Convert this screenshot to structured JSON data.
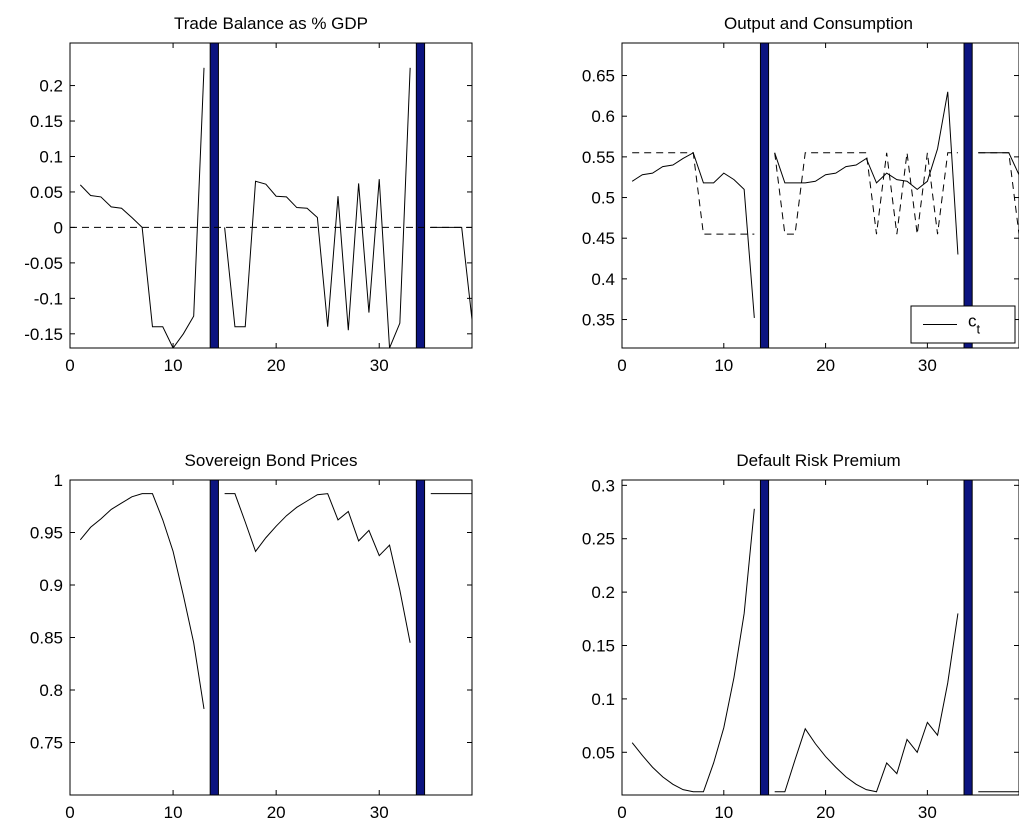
{
  "figure": {
    "background": "#ffffff",
    "shade_color": "#0c1480",
    "line_color": "#000000"
  },
  "chart_data": [
    {
      "type": "line",
      "title": "Trade Balance as % GDP",
      "xlim": [
        0,
        39
      ],
      "ylim": [
        -0.17,
        0.26
      ],
      "xticks": [
        0,
        10,
        20,
        30
      ],
      "yticks": [
        -0.15,
        -0.1,
        -0.05,
        0,
        0.05,
        0.1,
        0.15,
        0.2
      ],
      "ytick_labels": [
        "-0.15",
        "-0.1",
        "-0.05",
        "0",
        "0.05",
        "0.1",
        "0.15",
        "0.2"
      ],
      "shade_x": [
        [
          13.6,
          14.4
        ],
        [
          33.6,
          34.4
        ]
      ],
      "grid": false,
      "series": [
        {
          "style": "solid",
          "x": [
            1,
            2,
            3,
            4,
            5,
            6,
            7,
            8,
            9,
            10,
            11,
            12,
            13,
            14,
            15,
            16,
            17,
            18,
            19,
            20,
            21,
            22,
            23,
            24,
            25,
            26,
            27,
            28,
            29,
            30,
            31,
            32,
            33,
            34,
            35,
            36,
            37,
            38,
            39
          ],
          "y": [
            0.06,
            0.045,
            0.043,
            0.029,
            0.027,
            0.014,
            0.0,
            -0.14,
            -0.14,
            -0.17,
            -0.15,
            -0.125,
            0.225,
            null,
            0.0,
            -0.14,
            -0.14,
            0.065,
            0.061,
            0.044,
            0.043,
            0.028,
            0.027,
            0.014,
            -0.14,
            0.044,
            -0.145,
            0.062,
            -0.12,
            0.068,
            -0.17,
            -0.135,
            0.225,
            null,
            0.0,
            0.0,
            0.0,
            0.0,
            -0.13
          ]
        },
        {
          "style": "dashed",
          "x": [
            0,
            39
          ],
          "y": [
            0,
            0
          ]
        }
      ]
    },
    {
      "type": "line",
      "title": "Output and Consumption",
      "xlim": [
        0,
        39
      ],
      "ylim": [
        0.315,
        0.69
      ],
      "xticks": [
        0,
        10,
        20,
        30
      ],
      "yticks": [
        0.35,
        0.4,
        0.45,
        0.5,
        0.55,
        0.6,
        0.65
      ],
      "ytick_labels": [
        "0.35",
        "0.4",
        "0.45",
        "0.5",
        "0.55",
        "0.6",
        "0.65"
      ],
      "shade_x": [
        [
          13.6,
          14.4
        ],
        [
          33.6,
          34.4
        ]
      ],
      "grid": false,
      "legend": {
        "position": "bottom-right",
        "entries": [
          {
            "label": "c",
            "subscript": "t",
            "style": "solid"
          }
        ]
      },
      "series": [
        {
          "style": "solid",
          "x": [
            1,
            2,
            3,
            4,
            5,
            6,
            7,
            8,
            9,
            10,
            11,
            12,
            13,
            14,
            15,
            16,
            17,
            18,
            19,
            20,
            21,
            22,
            23,
            24,
            25,
            26,
            27,
            28,
            29,
            30,
            31,
            32,
            33,
            34,
            35,
            36,
            37,
            38,
            39
          ],
          "y": [
            0.52,
            0.528,
            0.53,
            0.538,
            0.54,
            0.548,
            0.555,
            0.518,
            0.518,
            0.53,
            0.522,
            0.51,
            0.352,
            null,
            0.555,
            0.518,
            0.518,
            0.518,
            0.52,
            0.528,
            0.53,
            0.538,
            0.54,
            0.548,
            0.518,
            0.53,
            0.522,
            0.52,
            0.51,
            0.52,
            0.56,
            0.63,
            0.43,
            null,
            0.555,
            0.555,
            0.555,
            0.555,
            0.528
          ]
        },
        {
          "style": "dashed",
          "x": [
            1,
            2,
            3,
            4,
            5,
            6,
            7,
            8,
            9,
            10,
            11,
            12,
            13,
            14,
            15,
            16,
            17,
            18,
            19,
            20,
            21,
            22,
            23,
            24,
            25,
            26,
            27,
            28,
            29,
            30,
            31,
            32,
            33,
            34,
            35,
            36,
            37,
            38,
            39
          ],
          "y": [
            0.555,
            0.555,
            0.555,
            0.555,
            0.555,
            0.555,
            0.555,
            0.455,
            0.455,
            0.455,
            0.455,
            0.455,
            0.455,
            null,
            0.555,
            0.455,
            0.455,
            0.555,
            0.555,
            0.555,
            0.555,
            0.555,
            0.555,
            0.555,
            0.455,
            0.555,
            0.455,
            0.555,
            0.455,
            0.555,
            0.455,
            0.555,
            0.555,
            null,
            0.555,
            0.555,
            0.555,
            0.555,
            0.455
          ]
        }
      ]
    },
    {
      "type": "line",
      "title": "Sovereign Bond Prices",
      "xlim": [
        0,
        39
      ],
      "ylim": [
        0.7,
        1.0
      ],
      "xticks": [
        0,
        10,
        20,
        30
      ],
      "yticks": [
        0.75,
        0.8,
        0.85,
        0.9,
        0.95,
        1
      ],
      "ytick_labels": [
        "0.75",
        "0.8",
        "0.85",
        "0.9",
        "0.95",
        "1"
      ],
      "shade_x": [
        [
          13.6,
          14.4
        ],
        [
          33.6,
          34.4
        ]
      ],
      "grid": false,
      "series": [
        {
          "style": "solid",
          "x": [
            1,
            2,
            3,
            4,
            5,
            6,
            7,
            8,
            9,
            10,
            11,
            12,
            13,
            14,
            15,
            16,
            17,
            18,
            19,
            20,
            21,
            22,
            23,
            24,
            25,
            26,
            27,
            28,
            29,
            30,
            31,
            32,
            33,
            34,
            35,
            36,
            37,
            38,
            39
          ],
          "y": [
            0.943,
            0.955,
            0.963,
            0.972,
            0.978,
            0.984,
            0.987,
            0.987,
            0.962,
            0.932,
            0.89,
            0.845,
            0.782,
            null,
            0.987,
            0.987,
            0.96,
            0.932,
            0.945,
            0.956,
            0.966,
            0.974,
            0.98,
            0.986,
            0.987,
            0.962,
            0.97,
            0.942,
            0.952,
            0.928,
            0.938,
            0.895,
            0.845,
            null,
            0.987,
            0.987,
            0.987,
            0.987,
            0.987
          ]
        }
      ]
    },
    {
      "type": "line",
      "title": "Default Risk Premium",
      "xlim": [
        0,
        39
      ],
      "ylim": [
        0.01,
        0.305
      ],
      "xticks": [
        0,
        10,
        20,
        30
      ],
      "yticks": [
        0.05,
        0.1,
        0.15,
        0.2,
        0.25,
        0.3
      ],
      "ytick_labels": [
        "0.05",
        "0.1",
        "0.15",
        "0.2",
        "0.25",
        "0.3"
      ],
      "shade_x": [
        [
          13.6,
          14.4
        ],
        [
          33.6,
          34.4
        ]
      ],
      "grid": false,
      "series": [
        {
          "style": "solid",
          "x": [
            1,
            2,
            3,
            4,
            5,
            6,
            7,
            8,
            9,
            10,
            11,
            12,
            13,
            14,
            15,
            16,
            17,
            18,
            19,
            20,
            21,
            22,
            23,
            24,
            25,
            26,
            27,
            28,
            29,
            30,
            31,
            32,
            33,
            34,
            35,
            36,
            37,
            38,
            39
          ],
          "y": [
            0.059,
            0.047,
            0.036,
            0.027,
            0.02,
            0.015,
            0.013,
            0.013,
            0.04,
            0.073,
            0.12,
            0.18,
            0.278,
            null,
            0.013,
            0.013,
            0.043,
            0.072,
            0.058,
            0.046,
            0.036,
            0.027,
            0.02,
            0.015,
            0.013,
            0.04,
            0.03,
            0.062,
            0.05,
            0.078,
            0.066,
            0.115,
            0.18,
            null,
            0.013,
            0.013,
            0.013,
            0.013,
            0.013
          ]
        }
      ]
    }
  ]
}
